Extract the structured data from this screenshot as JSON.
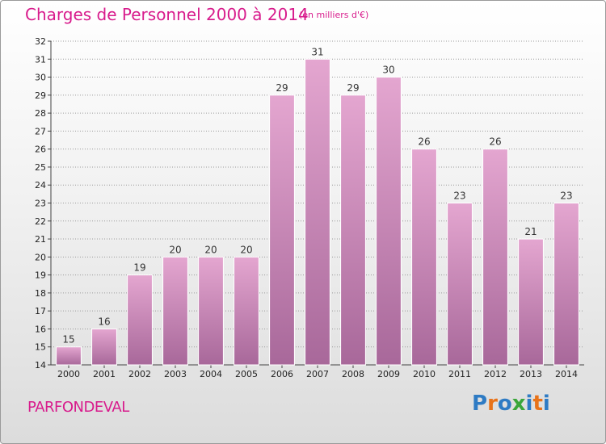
{
  "title": "Charges de Personnel 2000 à 2014",
  "subtitle": "(en milliers d'€)",
  "commune": "PARFONDEVAL",
  "logo": {
    "text": "Proxiti",
    "colors": [
      "#2e7bc4",
      "#e8731a",
      "#2e7bc4",
      "#3aa63a",
      "#2e7bc4",
      "#e8731a",
      "#2e7bc4"
    ]
  },
  "colors": {
    "title": "#d81b8c",
    "bar_top": "#e4a6d0",
    "bar_bottom": "#a8689a",
    "grid": "#9a9a9a"
  },
  "chart_data": {
    "type": "bar",
    "categories": [
      "2000",
      "2001",
      "2002",
      "2003",
      "2004",
      "2005",
      "2006",
      "2007",
      "2008",
      "2009",
      "2010",
      "2011",
      "2012",
      "2013",
      "2014"
    ],
    "values": [
      15,
      16,
      19,
      20,
      20,
      20,
      29,
      31,
      29,
      30,
      26,
      23,
      26,
      21,
      23
    ],
    "data_labels": [
      "15",
      "16",
      "19",
      "20",
      "20",
      "20",
      "29",
      "31",
      "29",
      "30",
      "26",
      "23",
      "26",
      "21",
      "23"
    ],
    "ylim": [
      14,
      32
    ],
    "yticks": [
      "14",
      "15",
      "16",
      "17",
      "18",
      "19",
      "20",
      "21",
      "22",
      "23",
      "24",
      "25",
      "26",
      "27",
      "28",
      "29",
      "30",
      "31",
      "32"
    ],
    "grid": true,
    "xlabel": "",
    "ylabel": ""
  }
}
